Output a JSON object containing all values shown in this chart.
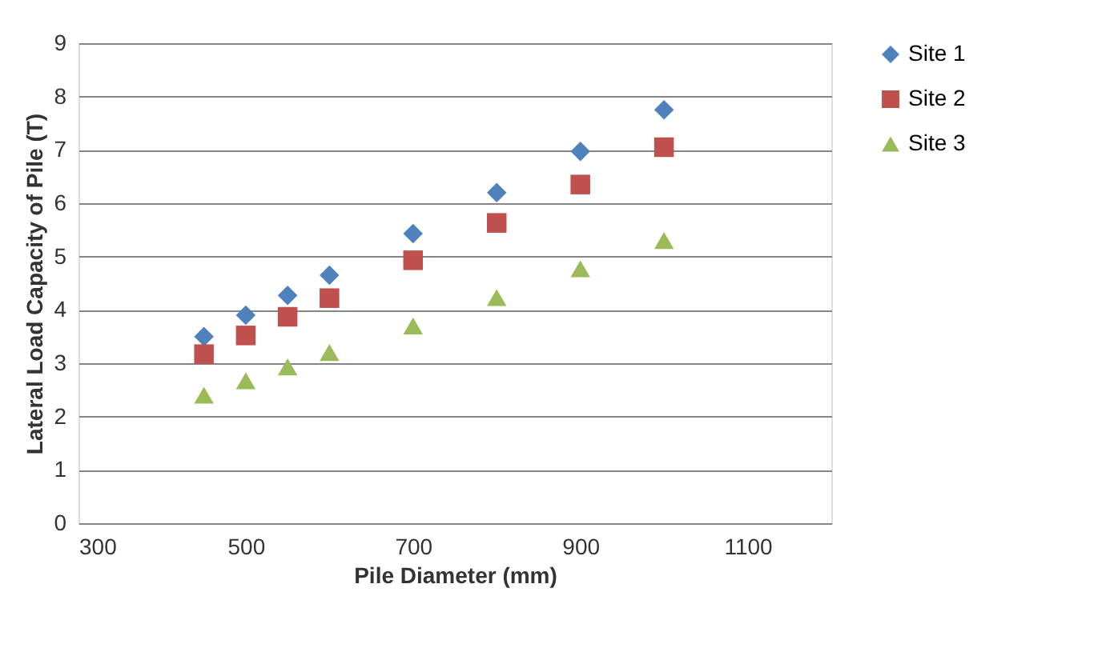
{
  "chart_data": {
    "type": "scatter",
    "xlabel": "Pile Diameter (mm)",
    "ylabel": "Lateral Load Capacity of Pile (T)",
    "x": [
      450,
      500,
      550,
      600,
      700,
      800,
      900,
      1000
    ],
    "series": [
      {
        "name": "Site 1",
        "color": "#4f81bd",
        "marker": "diamond",
        "values": [
          3.5,
          3.9,
          4.27,
          4.65,
          5.43,
          6.2,
          6.97,
          7.75
        ]
      },
      {
        "name": "Site 2",
        "color": "#c0504d",
        "marker": "square",
        "values": [
          3.17,
          3.52,
          3.87,
          4.22,
          4.93,
          5.63,
          6.35,
          7.05
        ]
      },
      {
        "name": "Site 3",
        "color": "#9bbb59",
        "marker": "triangle",
        "values": [
          2.4,
          2.67,
          2.93,
          3.2,
          3.7,
          4.23,
          4.77,
          5.3
        ]
      }
    ],
    "xlim": [
      300,
      1200
    ],
    "xticks": [
      300,
      500,
      700,
      900,
      1100
    ],
    "ylim": [
      0,
      9
    ],
    "yticks": [
      0,
      1,
      2,
      3,
      4,
      5,
      6,
      7,
      8,
      9
    ],
    "grid": "y",
    "legend": "right"
  }
}
